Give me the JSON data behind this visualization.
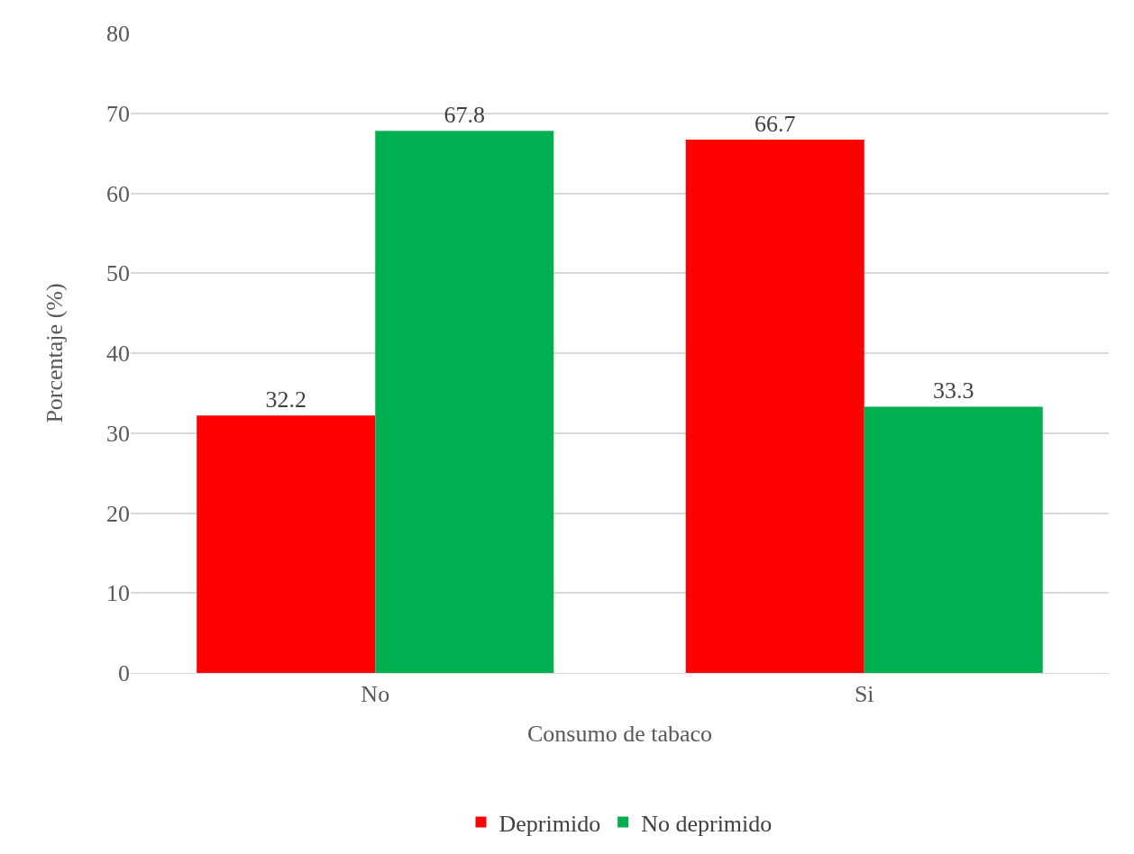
{
  "chart_data": {
    "type": "bar",
    "xlabel": "Consumo de tabaco",
    "ylabel": "Porcentaje (%)",
    "categories": [
      "No",
      "Si"
    ],
    "series": [
      {
        "name": "Deprimido",
        "color": "#ff0000",
        "values": [
          32.2,
          66.7
        ]
      },
      {
        "name": "No deprimido",
        "color": "#00b050",
        "values": [
          67.8,
          33.3
        ]
      }
    ],
    "ylim": [
      0,
      80
    ],
    "yticks": [
      0,
      10,
      20,
      30,
      40,
      50,
      60,
      70,
      80
    ],
    "grid": "y",
    "legend": "bottom",
    "data_labels": true
  }
}
